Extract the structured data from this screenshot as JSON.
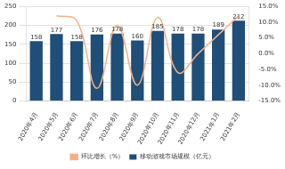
{
  "chart_data": {
    "type": "bar",
    "categories": [
      "2020年4月",
      "2020年5月",
      "2020年6月",
      "2020年7月",
      "2020年8月",
      "2020年9月",
      "2020年10月",
      "2020年11月",
      "2020年12月",
      "2021年1月",
      "2021年2月"
    ],
    "series": [
      {
        "name": "移动游戏市场规模（亿元）",
        "type": "bar",
        "color": "#1f4e79",
        "data_labels": true,
        "values": [
          158,
          177,
          158,
          176,
          178,
          160,
          185,
          178,
          178,
          189,
          212
        ]
      },
      {
        "name": "环比增长（%）",
        "type": "line",
        "color": "#f4b183",
        "axis": "y2",
        "marker": "none",
        "values": [
          null,
          12,
          10.5,
          -11,
          9,
          -10,
          11.5,
          -6,
          0,
          6,
          12
        ]
      }
    ],
    "ylim": [
      0,
      250
    ],
    "yticks": [
      0,
      50,
      100,
      150,
      200,
      250
    ],
    "y2lim": [
      -15,
      15
    ],
    "y2ticks": [
      {
        "value": -15,
        "label": "-15.0%"
      },
      {
        "value": -10,
        "label": "-10.0%"
      },
      {
        "value": -5,
        "label": "-5.0%"
      },
      {
        "value": 0,
        "label": "0.0%"
      },
      {
        "value": 5,
        "label": "5.0%"
      },
      {
        "value": 10,
        "label": "10.0%"
      },
      {
        "value": 15,
        "label": "15.0%"
      }
    ],
    "grid": true,
    "legend": "bottom"
  }
}
